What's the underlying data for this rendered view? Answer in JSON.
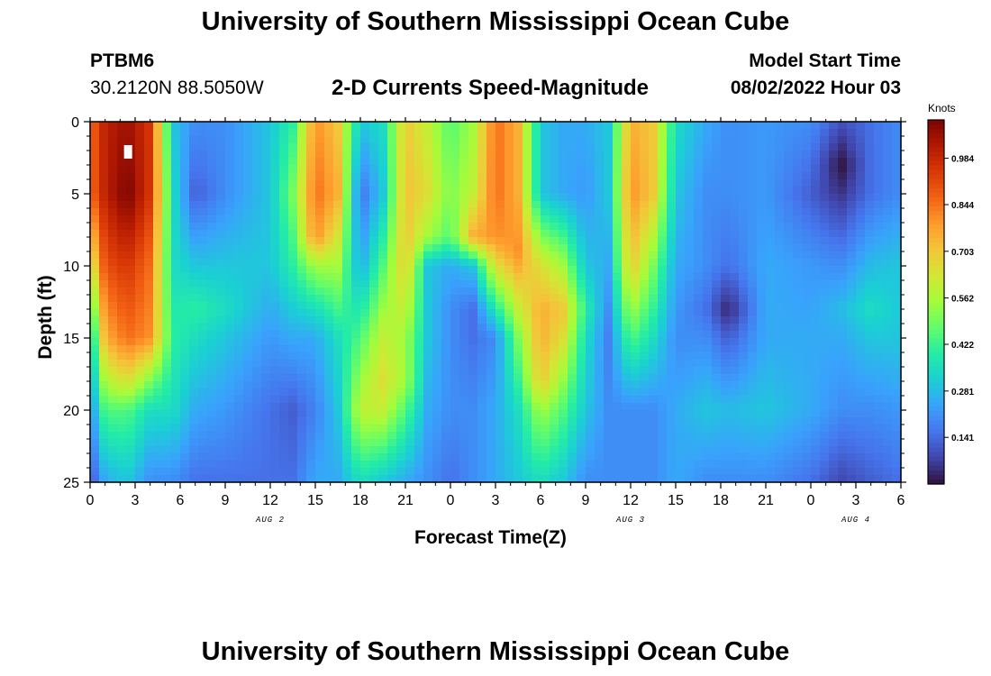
{
  "header": {
    "title": "University of Southern Mississippi Ocean Cube",
    "station": "PTBM6",
    "coordinates": "30.2120N  88.5050W",
    "subtitle": "2-D Currents Speed-Magnitude",
    "start_label": "Model Start Time",
    "start_value": "08/02/2022 Hour 03"
  },
  "footer": {
    "title": "University of Southern Mississippi Ocean Cube"
  },
  "chart_data": {
    "type": "heatmap",
    "title": "2-D Currents Speed-Magnitude",
    "xlabel": "Forecast Time(Z)",
    "ylabel": "Depth (ft)",
    "colorbar_label": "Knots",
    "x_tick_labels": [
      "0",
      "3",
      "6",
      "9",
      "12",
      "15",
      "18",
      "21",
      "0",
      "3",
      "6",
      "9",
      "12",
      "15",
      "18",
      "21",
      "0",
      "3",
      "6"
    ],
    "x_range_hours": [
      0,
      54
    ],
    "date_labels": [
      {
        "text": "AUG 2",
        "hour": 12
      },
      {
        "text": "AUG 3",
        "hour": 36
      },
      {
        "text": "AUG 4",
        "hour": 51
      }
    ],
    "y_tick_labels": [
      "0",
      "5",
      "10",
      "15",
      "20",
      "25"
    ],
    "y_range_ft": [
      0,
      25
    ],
    "y_inverted": true,
    "colorbar_ticks": [
      "0.984",
      "0.844",
      "0.703",
      "0.562",
      "0.422",
      "0.281",
      "0.141"
    ],
    "colorbar_tick_values": [
      0.984,
      0.844,
      0.703,
      0.562,
      0.422,
      0.281,
      0.141
    ],
    "value_range_knots": [
      0.0,
      1.1
    ],
    "grid": false,
    "colormap": [
      "#30123b",
      "#4145ab",
      "#4675ed",
      "#39a2fc",
      "#1bcfd4",
      "#24eca6",
      "#61fc6c",
      "#a4fc3b",
      "#d1e834",
      "#f3c63a",
      "#fe9b2d",
      "#f36315",
      "#d93806",
      "#b11901",
      "#7a0402"
    ],
    "speed_field": [
      {
        "hour": 0,
        "profile": [
          [
            0,
            0.85
          ],
          [
            5,
            0.85
          ],
          [
            10,
            0.6
          ],
          [
            15,
            0.3
          ],
          [
            20,
            0.2
          ],
          [
            25,
            0.1
          ]
        ]
      },
      {
        "hour": 1,
        "profile": [
          [
            0,
            1.0
          ],
          [
            5,
            1.0
          ],
          [
            10,
            0.9
          ],
          [
            15,
            0.75
          ],
          [
            20,
            0.45
          ],
          [
            25,
            0.25
          ]
        ]
      },
      {
        "hour": 2.5,
        "profile": [
          [
            0,
            1.05
          ],
          [
            5,
            1.1
          ],
          [
            10,
            0.95
          ],
          [
            15,
            0.85
          ],
          [
            18,
            0.65
          ],
          [
            20,
            0.45
          ],
          [
            25,
            0.3
          ]
        ]
      },
      {
        "hour": 4,
        "profile": [
          [
            0,
            0.95
          ],
          [
            5,
            0.95
          ],
          [
            10,
            0.85
          ],
          [
            15,
            0.8
          ],
          [
            18,
            0.5
          ],
          [
            20,
            0.35
          ],
          [
            25,
            0.2
          ]
        ]
      },
      {
        "hour": 5.5,
        "profile": [
          [
            0,
            0.3
          ],
          [
            5,
            0.35
          ],
          [
            10,
            0.35
          ],
          [
            15,
            0.4
          ],
          [
            20,
            0.35
          ],
          [
            25,
            0.2
          ]
        ]
      },
      {
        "hour": 7,
        "profile": [
          [
            0,
            0.2
          ],
          [
            5,
            0.12
          ],
          [
            10,
            0.3
          ],
          [
            13,
            0.4
          ],
          [
            15,
            0.35
          ],
          [
            20,
            0.25
          ],
          [
            25,
            0.15
          ]
        ]
      },
      {
        "hour": 9,
        "profile": [
          [
            0,
            0.2
          ],
          [
            5,
            0.2
          ],
          [
            10,
            0.3
          ],
          [
            13,
            0.35
          ],
          [
            15,
            0.3
          ],
          [
            20,
            0.22
          ],
          [
            25,
            0.15
          ]
        ]
      },
      {
        "hour": 12,
        "profile": [
          [
            0,
            0.3
          ],
          [
            5,
            0.3
          ],
          [
            10,
            0.3
          ],
          [
            15,
            0.22
          ],
          [
            20,
            0.15
          ],
          [
            25,
            0.15
          ]
        ]
      },
      {
        "hour": 13.5,
        "profile": [
          [
            0,
            0.4
          ],
          [
            5,
            0.5
          ],
          [
            10,
            0.4
          ],
          [
            15,
            0.25
          ],
          [
            20,
            0.12
          ],
          [
            25,
            0.15
          ]
        ]
      },
      {
        "hour": 15,
        "profile": [
          [
            0,
            0.8
          ],
          [
            5,
            0.85
          ],
          [
            8,
            0.8
          ],
          [
            10,
            0.55
          ],
          [
            13,
            0.35
          ],
          [
            15,
            0.25
          ],
          [
            20,
            0.18
          ],
          [
            25,
            0.25
          ]
        ]
      },
      {
        "hour": 16.5,
        "profile": [
          [
            0,
            0.7
          ],
          [
            5,
            0.75
          ],
          [
            10,
            0.55
          ],
          [
            15,
            0.35
          ],
          [
            20,
            0.3
          ],
          [
            25,
            0.25
          ]
        ]
      },
      {
        "hour": 18,
        "profile": [
          [
            0,
            0.3
          ],
          [
            5,
            0.15
          ],
          [
            10,
            0.25
          ],
          [
            15,
            0.45
          ],
          [
            20,
            0.6
          ],
          [
            25,
            0.35
          ]
        ]
      },
      {
        "hour": 19.5,
        "profile": [
          [
            0,
            0.35
          ],
          [
            5,
            0.3
          ],
          [
            10,
            0.45
          ],
          [
            15,
            0.6
          ],
          [
            18,
            0.65
          ],
          [
            20,
            0.6
          ],
          [
            25,
            0.3
          ]
        ]
      },
      {
        "hour": 21,
        "profile": [
          [
            0,
            0.7
          ],
          [
            5,
            0.72
          ],
          [
            10,
            0.7
          ],
          [
            15,
            0.55
          ],
          [
            18,
            0.55
          ],
          [
            20,
            0.45
          ],
          [
            25,
            0.25
          ]
        ]
      },
      {
        "hour": 22.5,
        "profile": [
          [
            0,
            0.6
          ],
          [
            5,
            0.65
          ],
          [
            8,
            0.55
          ],
          [
            10,
            0.3
          ],
          [
            15,
            0.3
          ],
          [
            20,
            0.25
          ],
          [
            25,
            0.2
          ]
        ]
      },
      {
        "hour": 24,
        "profile": [
          [
            0,
            0.45
          ],
          [
            5,
            0.5
          ],
          [
            8,
            0.45
          ],
          [
            10,
            0.25
          ],
          [
            13,
            0.2
          ],
          [
            15,
            0.2
          ],
          [
            20,
            0.2
          ],
          [
            25,
            0.15
          ]
        ]
      },
      {
        "hour": 25.5,
        "profile": [
          [
            0,
            0.55
          ],
          [
            5,
            0.6
          ],
          [
            8,
            0.75
          ],
          [
            10,
            0.3
          ],
          [
            13,
            0.15
          ],
          [
            15,
            0.15
          ],
          [
            20,
            0.2
          ],
          [
            25,
            0.2
          ]
        ]
      },
      {
        "hour": 27,
        "profile": [
          [
            0,
            0.85
          ],
          [
            5,
            0.85
          ],
          [
            8,
            0.8
          ],
          [
            10,
            0.65
          ],
          [
            15,
            0.2
          ],
          [
            20,
            0.25
          ],
          [
            25,
            0.25
          ]
        ]
      },
      {
        "hour": 28.5,
        "profile": [
          [
            0,
            0.75
          ],
          [
            5,
            0.75
          ],
          [
            9,
            0.8
          ],
          [
            10,
            0.75
          ],
          [
            15,
            0.5
          ],
          [
            20,
            0.35
          ],
          [
            25,
            0.3
          ]
        ]
      },
      {
        "hour": 30,
        "profile": [
          [
            0,
            0.3
          ],
          [
            5,
            0.3
          ],
          [
            10,
            0.65
          ],
          [
            13,
            0.75
          ],
          [
            15,
            0.75
          ],
          [
            18,
            0.7
          ],
          [
            20,
            0.55
          ],
          [
            25,
            0.35
          ]
        ]
      },
      {
        "hour": 31.5,
        "profile": [
          [
            0,
            0.25
          ],
          [
            5,
            0.25
          ],
          [
            10,
            0.55
          ],
          [
            13,
            0.7
          ],
          [
            15,
            0.65
          ],
          [
            20,
            0.45
          ],
          [
            25,
            0.3
          ]
        ]
      },
      {
        "hour": 33,
        "profile": [
          [
            0,
            0.25
          ],
          [
            5,
            0.22
          ],
          [
            10,
            0.3
          ],
          [
            13,
            0.4
          ],
          [
            15,
            0.35
          ],
          [
            20,
            0.3
          ],
          [
            25,
            0.2
          ]
        ]
      },
      {
        "hour": 34.5,
        "profile": [
          [
            0,
            0.3
          ],
          [
            5,
            0.3
          ],
          [
            10,
            0.25
          ],
          [
            15,
            0.18
          ],
          [
            20,
            0.2
          ],
          [
            25,
            0.2
          ]
        ]
      },
      {
        "hour": 36,
        "profile": [
          [
            0,
            0.75
          ],
          [
            5,
            0.8
          ],
          [
            10,
            0.7
          ],
          [
            15,
            0.45
          ],
          [
            18,
            0.3
          ],
          [
            20,
            0.2
          ],
          [
            25,
            0.2
          ]
        ]
      },
      {
        "hour": 37.5,
        "profile": [
          [
            0,
            0.7
          ],
          [
            5,
            0.7
          ],
          [
            10,
            0.5
          ],
          [
            15,
            0.35
          ],
          [
            20,
            0.2
          ],
          [
            25,
            0.2
          ]
        ]
      },
      {
        "hour": 39,
        "profile": [
          [
            0,
            0.35
          ],
          [
            5,
            0.3
          ],
          [
            10,
            0.25
          ],
          [
            15,
            0.2
          ],
          [
            20,
            0.25
          ],
          [
            25,
            0.25
          ]
        ]
      },
      {
        "hour": 41,
        "profile": [
          [
            0,
            0.25
          ],
          [
            5,
            0.2
          ],
          [
            10,
            0.2
          ],
          [
            13,
            0.15
          ],
          [
            15,
            0.2
          ],
          [
            20,
            0.3
          ],
          [
            25,
            0.2
          ]
        ]
      },
      {
        "hour": 42.5,
        "profile": [
          [
            0,
            0.2
          ],
          [
            5,
            0.2
          ],
          [
            10,
            0.15
          ],
          [
            13,
            0.03
          ],
          [
            15,
            0.12
          ],
          [
            20,
            0.28
          ],
          [
            25,
            0.2
          ]
        ]
      },
      {
        "hour": 45,
        "profile": [
          [
            0,
            0.22
          ],
          [
            5,
            0.22
          ],
          [
            10,
            0.25
          ],
          [
            15,
            0.25
          ],
          [
            20,
            0.3
          ],
          [
            25,
            0.2
          ]
        ]
      },
      {
        "hour": 48,
        "profile": [
          [
            0,
            0.2
          ],
          [
            5,
            0.12
          ],
          [
            10,
            0.22
          ],
          [
            15,
            0.25
          ],
          [
            20,
            0.25
          ],
          [
            25,
            0.15
          ]
        ]
      },
      {
        "hour": 50,
        "profile": [
          [
            0,
            0.1
          ],
          [
            3,
            0.0
          ],
          [
            5,
            0.05
          ],
          [
            10,
            0.2
          ],
          [
            13,
            0.28
          ],
          [
            15,
            0.25
          ],
          [
            20,
            0.2
          ],
          [
            25,
            0.08
          ]
        ]
      },
      {
        "hour": 52,
        "profile": [
          [
            0,
            0.15
          ],
          [
            5,
            0.15
          ],
          [
            10,
            0.28
          ],
          [
            13,
            0.35
          ],
          [
            15,
            0.3
          ],
          [
            20,
            0.2
          ],
          [
            25,
            0.12
          ]
        ]
      },
      {
        "hour": 54,
        "profile": [
          [
            0,
            0.2
          ],
          [
            5,
            0.2
          ],
          [
            10,
            0.3
          ],
          [
            15,
            0.3
          ],
          [
            20,
            0.22
          ],
          [
            25,
            0.15
          ]
        ]
      }
    ],
    "marker": {
      "hour": 2.5,
      "depth_ft": 2,
      "color": "#ffffff"
    }
  }
}
